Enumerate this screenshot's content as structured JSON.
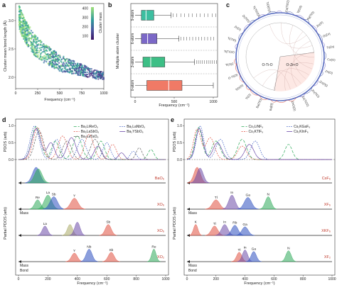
{
  "panels": {
    "a": {
      "letter": "a",
      "ylabel": "Cluster mean bond length (Å)",
      "xlabel": "Frequency (cm⁻¹)",
      "colorbar_label": "Cluster mass",
      "cbar_ticks": [
        "400",
        "300",
        "200",
        "100"
      ]
    },
    "b": {
      "letter": "b",
      "ylabel": "Multiple atom cluster",
      "xlabel": "Frequency (cm⁻¹)",
      "rows": [
        "9-atom",
        "6-atom",
        "3-atom",
        "0-atom"
      ]
    },
    "c": {
      "letter": "c",
      "inner_left": "O-Ti-O",
      "inner_right": "O-Zn-O"
    },
    "d": {
      "letter": "d",
      "ylabel_top": "PDOS (arb)",
      "ylabel_bottom": "Partial PDOS (arb)",
      "xlabel": "Frequency (cm⁻¹)"
    },
    "e": {
      "letter": "e",
      "ylabel_top": "PDOS (arb)",
      "ylabel_bottom": "Partial PDOS (arb)",
      "xlabel": "Frequency (cm⁻¹)"
    }
  },
  "chart_data": [
    {
      "type": "scatter",
      "panel": "a",
      "xlabel": "Frequency (cm⁻¹)",
      "ylabel": "Cluster mean bond length (Å)",
      "xlim": [
        0,
        1000
      ],
      "ylim": [
        1.8,
        3.3
      ],
      "xticks": [
        "0",
        "250",
        "500",
        "750",
        "1000"
      ],
      "yticks": [
        "2.0",
        "2.5",
        "3.0"
      ],
      "colorbar": {
        "label": "Cluster mass",
        "ticks": [
          "400",
          "300",
          "200",
          "100"
        ]
      },
      "trend_points": [
        [
          40,
          3.05
        ],
        [
          100,
          2.85
        ],
        [
          200,
          2.6
        ],
        [
          300,
          2.45
        ],
        [
          400,
          2.35
        ],
        [
          500,
          2.25
        ],
        [
          600,
          2.2
        ],
        [
          700,
          2.15
        ],
        [
          800,
          2.1
        ],
        [
          900,
          2.05
        ],
        [
          1000,
          2.03
        ]
      ]
    },
    {
      "type": "box",
      "panel": "b",
      "xlabel": "Frequency (cm⁻¹)",
      "ylabel": "Multiple atom cluster",
      "xlim": [
        0,
        1000
      ],
      "xticks": [
        "0",
        "500",
        "1000"
      ],
      "series": [
        {
          "name": "9-atom",
          "min": 0,
          "q1": 80,
          "median": 140,
          "q3": 240,
          "max": 460,
          "color": "#3dbea0"
        },
        {
          "name": "6-atom",
          "min": 0,
          "q1": 80,
          "median": 160,
          "q3": 280,
          "max": 560,
          "color": "#7b68c7"
        },
        {
          "name": "3-atom",
          "min": 0,
          "q1": 100,
          "median": 200,
          "q3": 380,
          "max": 760,
          "color": "#3dbf86"
        },
        {
          "name": "0-atom",
          "min": 0,
          "q1": 150,
          "median": 430,
          "q3": 600,
          "max": 1000,
          "color": "#f07a66"
        }
      ]
    },
    {
      "type": "chord",
      "panel": "c",
      "left_labels": [
        "Ba[O]",
        "Ba(TiO)",
        "Ti(O)",
        "TiO(O)",
        "O-Ti(O)",
        "Ti(O)2",
        "Ti(TiO2)",
        "Ti(TiO)",
        "Zr(O)",
        "Zr(TiO)",
        "Ti(TiO2)2",
        "TiO(O)2"
      ],
      "right_labels": [
        "Ca(TiO2)",
        "Ti(O2)",
        "Ag(TiO)",
        "Zn(O)",
        "O(Zn)",
        "Ti(Zn)",
        "Ca(O)",
        "Zn(O)",
        "Zn(O)2",
        "Zn(TiO)",
        "Zn(TiO2)",
        "ZnO(O)"
      ]
    },
    {
      "type": "line",
      "panel": "d-top",
      "xlim": [
        0,
        1000
      ],
      "ylim": [
        0,
        1.05
      ],
      "yticks": [
        "0.0",
        "0.5",
        "1.0"
      ],
      "series": [
        {
          "name": "Ba₂LiReO₆",
          "color": "#2eaa5a",
          "dash": "4,2",
          "peaks": [
            [
              120,
              0.98,
              30
            ],
            [
              250,
              0.55,
              25
            ],
            [
              400,
              0.7,
              30
            ],
            [
              560,
              0.55,
              25
            ],
            [
              900,
              0.3,
              20
            ]
          ]
        },
        {
          "name": "Ba₂LaNbO₆",
          "color": "#2c4fbf",
          "dash": "1.5,1.5",
          "peaks": [
            [
              110,
              1.0,
              30
            ],
            [
              260,
              0.6,
              25
            ],
            [
              430,
              0.6,
              30
            ],
            [
              600,
              0.5,
              25
            ],
            [
              780,
              0.25,
              20
            ]
          ]
        },
        {
          "name": "Ba₂LaSbO₆",
          "color": "#e05040",
          "dash": "2,1.5",
          "peaks": [
            [
              130,
              0.95,
              30
            ],
            [
              300,
              0.7,
              30
            ],
            [
              480,
              0.75,
              30
            ],
            [
              640,
              0.45,
              25
            ]
          ]
        },
        {
          "name": "Ba₂YSbO₆",
          "color": "#6b4aa8",
          "dash": "0",
          "peaks": [
            [
              120,
              0.92,
              30
            ],
            [
              220,
              0.5,
              25
            ],
            [
              360,
              0.65,
              30
            ],
            [
              540,
              0.4,
              25
            ],
            [
              700,
              0.2,
              20
            ]
          ]
        },
        {
          "name": "Ba₂LaTaO₆",
          "color": "#666666",
          "dash": "3,1.5",
          "peaks": [
            [
              140,
              0.85,
              30
            ],
            [
              330,
              0.55,
              30
            ],
            [
              520,
              0.6,
              30
            ],
            [
              820,
              0.35,
              20
            ]
          ]
        }
      ]
    },
    {
      "type": "line",
      "panel": "e-top",
      "xlim": [
        0,
        1000
      ],
      "ylim": [
        0,
        1.05
      ],
      "yticks": [
        "0.0",
        "0.5",
        "1.0"
      ],
      "series": [
        {
          "name": "Cs₂LiNF₆",
          "color": "#2eaa5a",
          "dash": "4,2",
          "peaks": [
            [
              80,
              0.95,
              25
            ],
            [
              200,
              0.55,
              30
            ],
            [
              380,
              0.6,
              30
            ],
            [
              700,
              0.45,
              25
            ]
          ]
        },
        {
          "name": "Cs₂KGaF₆",
          "color": "#2c4fbf",
          "dash": "1.5,1.5",
          "peaks": [
            [
              90,
              1.0,
              25
            ],
            [
              230,
              0.6,
              30
            ],
            [
              470,
              0.55,
              30
            ]
          ]
        },
        {
          "name": "Cs₂KTlF₆",
          "color": "#e05040",
          "dash": "2,1.5",
          "peaks": [
            [
              70,
              0.9,
              25
            ],
            [
              160,
              0.65,
              30
            ],
            [
              380,
              0.4,
              30
            ]
          ]
        },
        {
          "name": "Cs₂KInF₆",
          "color": "#6b4aa8",
          "dash": "0",
          "peaks": [
            [
              85,
              0.92,
              25
            ],
            [
              210,
              0.5,
              30
            ],
            [
              430,
              0.45,
              30
            ]
          ]
        }
      ]
    }
  ],
  "d_rows": [
    {
      "right": "BaO₆",
      "peaks": [
        {
          "x": 120,
          "h": 1.0,
          "w": 25,
          "color": "#2c4fbf",
          "label": ""
        },
        {
          "x": 135,
          "h": 0.9,
          "w": 25,
          "color": "#2eaa5a",
          "label": ""
        }
      ]
    },
    {
      "right": "XO₆",
      "peaks": [
        {
          "x": 130,
          "h": 0.6,
          "w": 20,
          "color": "#2eaa5a",
          "label": "Re"
        },
        {
          "x": 200,
          "h": 0.9,
          "w": 25,
          "color": "#2eaa5a",
          "label": "La"
        },
        {
          "x": 240,
          "h": 0.8,
          "w": 25,
          "color": "#2c4fbf",
          "label": "Sb"
        },
        {
          "x": 380,
          "h": 0.7,
          "w": 25,
          "color": "#e05040",
          "label": "Y"
        }
      ]
    },
    {
      "right": "XO₆",
      "peaks": [
        {
          "x": 180,
          "h": 0.6,
          "w": 18,
          "color": "#6b4aa8",
          "label": "La"
        },
        {
          "x": 350,
          "h": 0.7,
          "w": 18,
          "color": "#aaaa66",
          "label": ""
        },
        {
          "x": 400,
          "h": 0.85,
          "w": 18,
          "color": "#6b4aa8",
          "label": ""
        },
        {
          "x": 610,
          "h": 0.7,
          "w": 20,
          "color": "#e05040",
          "label": "Sb"
        }
      ]
    },
    {
      "right": "XO₂",
      "peaks": [
        {
          "x": 380,
          "h": 0.55,
          "w": 20,
          "color": "#e05040",
          "label": "Y"
        },
        {
          "x": 480,
          "h": 0.8,
          "w": 20,
          "color": "#2c4fbf",
          "label": "Nb"
        },
        {
          "x": 630,
          "h": 0.6,
          "w": 20,
          "color": "#e05040",
          "label": "Sb"
        },
        {
          "x": 920,
          "h": 0.8,
          "w": 15,
          "color": "#2eaa5a",
          "label": "Re"
        }
      ]
    }
  ],
  "e_rows": [
    {
      "right": "CsF₆",
      "peaks": [
        {
          "x": 70,
          "h": 1.0,
          "w": 22,
          "color": "#e05040",
          "label": ""
        },
        {
          "x": 90,
          "h": 0.95,
          "w": 22,
          "color": "#6b4aa8",
          "label": ""
        }
      ]
    },
    {
      "right": "XF₆",
      "peaks": [
        {
          "x": 200,
          "h": 0.6,
          "w": 25,
          "color": "#e05040",
          "label": "Tl"
        },
        {
          "x": 310,
          "h": 0.9,
          "w": 22,
          "color": "#6b4aa8",
          "label": "In"
        },
        {
          "x": 420,
          "h": 0.75,
          "w": 25,
          "color": "#2c4fbf",
          "label": "Ga"
        },
        {
          "x": 560,
          "h": 0.8,
          "w": 20,
          "color": "#2eaa5a",
          "label": "N"
        }
      ]
    },
    {
      "right": "XKF₆",
      "peaks": [
        {
          "x": 60,
          "h": 0.7,
          "w": 15,
          "color": "#e05040",
          "label": "K"
        },
        {
          "x": 190,
          "h": 0.6,
          "w": 22,
          "color": "#e05040",
          "label": "Tl"
        },
        {
          "x": 260,
          "h": 0.7,
          "w": 22,
          "color": "#6b4aa8",
          "label": "In"
        },
        {
          "x": 330,
          "h": 0.65,
          "w": 22,
          "color": "#2c4fbf",
          "label": "Rb"
        },
        {
          "x": 400,
          "h": 0.55,
          "w": 22,
          "color": "#2c4fbf",
          "label": "Ga"
        }
      ]
    },
    {
      "right": "XF₂",
      "peaks": [
        {
          "x": 360,
          "h": 0.6,
          "w": 18,
          "color": "#e05040",
          "label": "Tl"
        },
        {
          "x": 400,
          "h": 0.75,
          "w": 18,
          "color": "#6b4aa8",
          "label": "In"
        },
        {
          "x": 460,
          "h": 0.65,
          "w": 18,
          "color": "#2c4fbf",
          "label": "Ga"
        },
        {
          "x": 700,
          "h": 0.7,
          "w": 18,
          "color": "#2eaa5a",
          "label": "N"
        }
      ]
    }
  ],
  "axis_text": {
    "mass": "Mass",
    "bond": "Bond",
    "freq_ticks": [
      "0",
      "200",
      "400",
      "600",
      "800",
      "1000"
    ]
  }
}
